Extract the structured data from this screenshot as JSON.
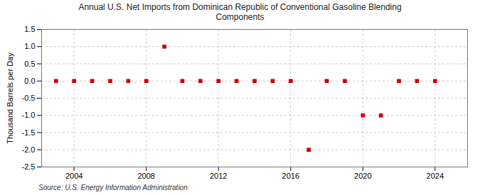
{
  "chart_data": {
    "type": "scatter",
    "title": "Annual U.S. Net Imports from Dominican Republic of Conventional Gasoline Blending\nComponents",
    "ylabel": "Thousand Barrels per Day",
    "source": "Source: U.S. Energy Information Administration",
    "x": [
      2003,
      2004,
      2005,
      2006,
      2007,
      2008,
      2009,
      2010,
      2011,
      2012,
      2013,
      2014,
      2015,
      2016,
      2017,
      2018,
      2019,
      2020,
      2021,
      2022,
      2023,
      2024
    ],
    "values": [
      0,
      0,
      0,
      0,
      0,
      0,
      1.0,
      0,
      0,
      0,
      0,
      0,
      0,
      0,
      -2.0,
      0,
      0,
      -1.0,
      -1.0,
      0,
      0,
      0
    ],
    "color": "#cc0000",
    "marker": "square",
    "grid": true,
    "xlim": [
      2002.2,
      2025.8
    ],
    "xticks": [
      2004,
      2008,
      2012,
      2016,
      2020,
      2024
    ],
    "ylim": [
      -2.5,
      1.5
    ],
    "yticks": [
      -2.5,
      {
        "value": -2,
        "label": "-2.0"
      },
      -1.5,
      {
        "value": -1,
        "label": "-1.0"
      },
      -0.5,
      {
        "value": 0,
        "label": "0.0"
      },
      0.5,
      {
        "value": 1,
        "label": "1.0"
      },
      1.5
    ]
  }
}
